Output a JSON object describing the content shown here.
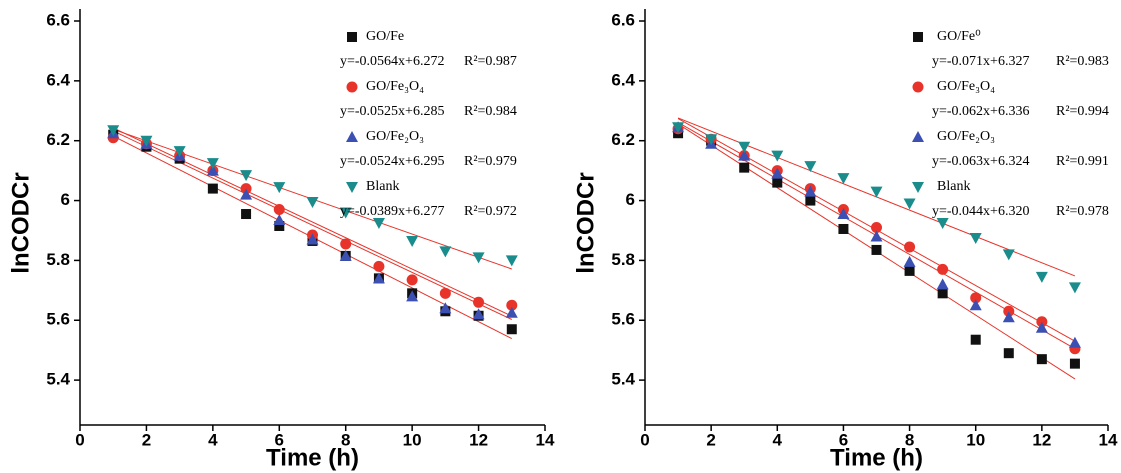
{
  "chart_data": [
    {
      "type": "scatter",
      "xlabel": "Time (h)",
      "ylabel": "lnCODCr",
      "xlim": [
        0,
        14
      ],
      "ylim": [
        5.25,
        6.6
      ],
      "xticks": [
        0,
        2,
        4,
        6,
        8,
        10,
        12,
        14
      ],
      "yticks": [
        5.4,
        5.6,
        5.8,
        6.0,
        6.2,
        6.4,
        6.6
      ],
      "x": [
        1,
        2,
        3,
        4,
        5,
        6,
        7,
        8,
        9,
        10,
        11,
        12,
        13
      ],
      "fit_color": "#e8332a",
      "series": [
        {
          "name": "GO/Fe",
          "color": "#111111",
          "marker": "square",
          "values": [
            6.22,
            6.18,
            6.14,
            6.04,
            5.955,
            5.915,
            5.865,
            5.815,
            5.74,
            5.69,
            5.63,
            5.615,
            5.57
          ],
          "fit": {
            "slope": -0.0564,
            "intercept": 6.272,
            "label": "y=-0.0564x+6.272",
            "r2": 0.987,
            "r2_label": "R²=0.987"
          }
        },
        {
          "name": "GO/Fe₃O₄",
          "color": "#e8332a",
          "marker": "circle",
          "values": [
            6.21,
            6.19,
            6.15,
            6.1,
            6.04,
            5.97,
            5.885,
            5.855,
            5.78,
            5.735,
            5.69,
            5.66,
            5.65
          ],
          "fit": {
            "slope": -0.0525,
            "intercept": 6.285,
            "label": "y=-0.0525x+6.285",
            "r2": 0.984,
            "r2_label": "R²=0.984"
          }
        },
        {
          "name": "GO/Fe₂O₃",
          "color": "#3c50b4",
          "marker": "triangle-up",
          "values": [
            6.225,
            6.19,
            6.15,
            6.1,
            6.02,
            5.935,
            5.87,
            5.815,
            5.74,
            5.68,
            5.64,
            5.62,
            5.625
          ],
          "fit": {
            "slope": -0.0524,
            "intercept": 6.295,
            "label": "y=-0.0524x+6.295",
            "r2": 0.979,
            "r2_label": "R²=0.979"
          }
        },
        {
          "name": "Blank",
          "color": "#1a8c8c",
          "marker": "triangle-down",
          "values": [
            6.235,
            6.2,
            6.165,
            6.125,
            6.085,
            6.045,
            5.995,
            5.96,
            5.925,
            5.865,
            5.83,
            5.81,
            5.8
          ],
          "fit": {
            "slope": -0.0389,
            "intercept": 6.277,
            "label": "y=-0.0389x+6.277",
            "r2": 0.972,
            "r2_label": "R²=0.972"
          }
        }
      ]
    },
    {
      "type": "scatter",
      "xlabel": "Time (h)",
      "ylabel": "lnCODCr",
      "xlim": [
        0,
        14
      ],
      "ylim": [
        5.25,
        6.6
      ],
      "xticks": [
        0,
        2,
        4,
        6,
        8,
        10,
        12,
        14
      ],
      "yticks": [
        5.4,
        5.6,
        5.8,
        6.0,
        6.2,
        6.4,
        6.6
      ],
      "x": [
        1,
        2,
        3,
        4,
        5,
        6,
        7,
        8,
        9,
        10,
        11,
        12,
        13
      ],
      "fit_color": "#e8332a",
      "series": [
        {
          "name": "GO/Fe⁰",
          "color": "#111111",
          "marker": "square",
          "values": [
            6.225,
            6.2,
            6.11,
            6.06,
            6.0,
            5.905,
            5.835,
            5.765,
            5.69,
            5.535,
            5.49,
            5.47,
            5.455
          ],
          "fit": {
            "slope": -0.071,
            "intercept": 6.327,
            "label": "y=-0.071x+6.327",
            "r2": 0.983,
            "r2_label": "R²=0.983"
          }
        },
        {
          "name": "GO/Fe₃O₄",
          "color": "#e8332a",
          "marker": "circle",
          "values": [
            6.24,
            6.205,
            6.15,
            6.1,
            6.04,
            5.97,
            5.91,
            5.845,
            5.77,
            5.675,
            5.63,
            5.595,
            5.505
          ],
          "fit": {
            "slope": -0.062,
            "intercept": 6.336,
            "label": "y=-0.062x+6.336",
            "r2": 0.994,
            "r2_label": "R²=0.994"
          }
        },
        {
          "name": "GO/Fe₂O₃",
          "color": "#3c50b4",
          "marker": "triangle-up",
          "values": [
            6.245,
            6.19,
            6.15,
            6.09,
            6.03,
            5.955,
            5.88,
            5.795,
            5.72,
            5.65,
            5.61,
            5.575,
            5.525
          ],
          "fit": {
            "slope": -0.063,
            "intercept": 6.324,
            "label": "y=-0.063x+6.324",
            "r2": 0.991,
            "r2_label": "R²=0.991"
          }
        },
        {
          "name": "Blank",
          "color": "#1a8c8c",
          "marker": "triangle-down",
          "values": [
            6.245,
            6.205,
            6.18,
            6.15,
            6.115,
            6.075,
            6.03,
            5.99,
            5.925,
            5.875,
            5.82,
            5.745,
            5.71
          ],
          "fit": {
            "slope": -0.044,
            "intercept": 6.32,
            "label": "y=-0.044x+6.320",
            "r2": 0.978,
            "r2_label": "R²=0.978"
          }
        }
      ]
    }
  ]
}
